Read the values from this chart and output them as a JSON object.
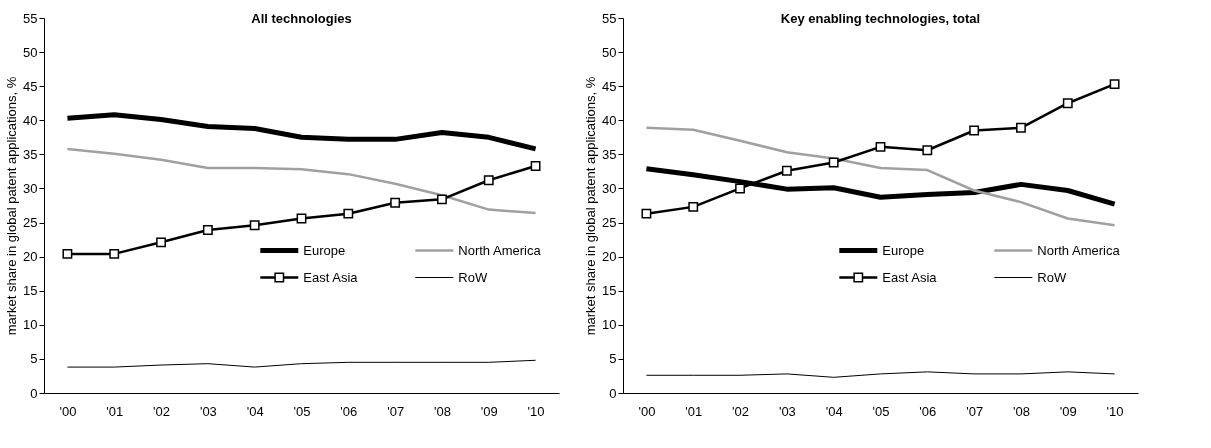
{
  "chart_data": [
    {
      "type": "line",
      "title": "All technologies",
      "ylabel": "market share in global patent applications, %",
      "categories": [
        "'00",
        "'01",
        "'02",
        "'03",
        "'04",
        "'05",
        "'06",
        "'07",
        "'08",
        "'09",
        "'10"
      ],
      "ylim": [
        0,
        55
      ],
      "yticks": [
        0,
        5,
        10,
        15,
        20,
        25,
        30,
        35,
        40,
        45,
        50,
        55
      ],
      "grid": false,
      "legend": "bottom right",
      "series": [
        {
          "name": "Europe",
          "color": "#000000",
          "marker": "none",
          "values": [
            40.3,
            40.8,
            40.1,
            39.1,
            38.8,
            37.5,
            37.2,
            37.2,
            38.2,
            37.5,
            35.8
          ]
        },
        {
          "name": "North America",
          "color": "#a0a0a0",
          "marker": "none",
          "values": [
            35.8,
            35.1,
            34.2,
            33.0,
            33.0,
            32.8,
            32.1,
            30.7,
            29.0,
            26.9,
            26.4
          ]
        },
        {
          "name": "East Asia",
          "color": "#000000",
          "marker": "square",
          "values": [
            20.4,
            20.4,
            22.1,
            23.9,
            24.6,
            25.6,
            26.3,
            27.9,
            28.4,
            31.2,
            33.3
          ]
        },
        {
          "name": "RoW",
          "color": "#000000",
          "marker": "none",
          "values": [
            3.8,
            3.8,
            4.1,
            4.3,
            3.8,
            4.3,
            4.5,
            4.5,
            4.5,
            4.5,
            4.8
          ]
        }
      ]
    },
    {
      "type": "line",
      "title": "Key enabling technologies, total",
      "ylabel": "market share in global patent applications, %",
      "categories": [
        "'00",
        "'01",
        "'02",
        "'03",
        "'04",
        "'05",
        "'06",
        "'07",
        "'08",
        "'09",
        "'10"
      ],
      "ylim": [
        0,
        55
      ],
      "yticks": [
        0,
        5,
        10,
        15,
        20,
        25,
        30,
        35,
        40,
        45,
        50,
        55
      ],
      "grid": false,
      "legend": "bottom right",
      "series": [
        {
          "name": "Europe",
          "color": "#000000",
          "marker": "none",
          "values": [
            32.9,
            32.0,
            31.0,
            29.9,
            30.1,
            28.7,
            29.1,
            29.4,
            30.6,
            29.7,
            27.7
          ]
        },
        {
          "name": "North America",
          "color": "#a0a0a0",
          "marker": "none",
          "values": [
            38.9,
            38.6,
            37.0,
            35.3,
            34.4,
            33.0,
            32.7,
            29.7,
            28.0,
            25.6,
            24.6
          ]
        },
        {
          "name": "East Asia",
          "color": "#000000",
          "marker": "square",
          "values": [
            26.3,
            27.3,
            30.0,
            32.6,
            33.8,
            36.1,
            35.6,
            38.5,
            38.9,
            42.5,
            45.3
          ]
        },
        {
          "name": "RoW",
          "color": "#000000",
          "marker": "none",
          "values": [
            2.6,
            2.6,
            2.6,
            2.8,
            2.3,
            2.8,
            3.1,
            2.8,
            2.8,
            3.1,
            2.8
          ]
        }
      ]
    }
  ]
}
